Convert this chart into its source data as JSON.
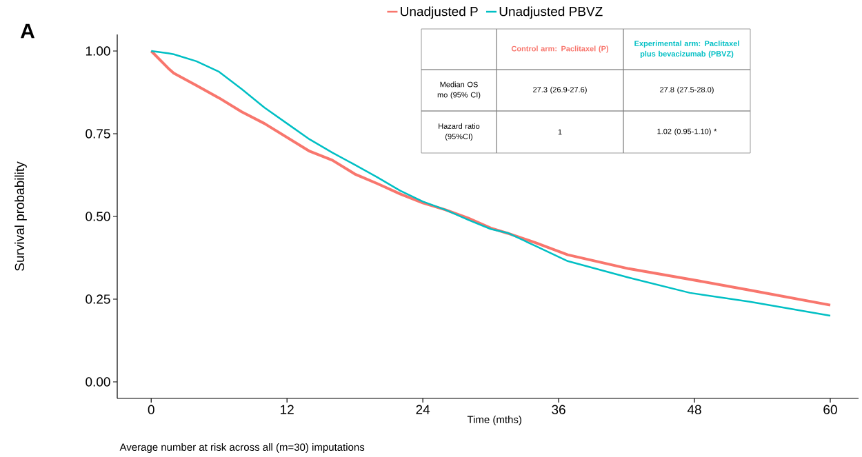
{
  "chart_data": {
    "type": "line",
    "xlabel": "Time (mths)",
    "ylabel": "Survival probability",
    "xlim": [
      -3,
      62.5
    ],
    "ylim": [
      -0.05,
      1.05
    ],
    "xticks": [
      0,
      12,
      24,
      36,
      48,
      60
    ],
    "yticks": [
      {
        "value": 0,
        "label": "0.00"
      },
      {
        "value": 0.25,
        "label": "0.25"
      },
      {
        "value": 0.5,
        "label": "0.50"
      },
      {
        "value": 0.75,
        "label": "0.75"
      },
      {
        "value": 1,
        "label": "1.00"
      }
    ],
    "x": [
      0,
      1.5,
      2,
      4,
      6,
      8,
      10,
      12,
      14,
      16,
      18,
      20,
      22,
      24,
      26,
      28,
      30,
      31.5,
      34,
      36.8,
      42.2,
      47.6,
      52.9,
      60
    ],
    "series": [
      {
        "name": "Unadjusted P",
        "color": "#f8766d",
        "values": [
          1,
          0.948,
          0.933,
          0.896,
          0.858,
          0.816,
          0.781,
          0.739,
          0.697,
          0.67,
          0.628,
          0.599,
          0.568,
          0.541,
          0.52,
          0.495,
          0.465,
          0.449,
          0.42,
          0.384,
          0.342,
          0.31,
          0.277,
          0.232
        ]
      },
      {
        "name": "Unadjusted PBVZ",
        "color": "#00bfc4",
        "values": [
          1,
          0.993,
          0.99,
          0.969,
          0.937,
          0.885,
          0.829,
          0.781,
          0.733,
          0.693,
          0.656,
          0.618,
          0.578,
          0.545,
          0.52,
          0.49,
          0.462,
          0.45,
          0.41,
          0.365,
          0.315,
          0.269,
          0.242,
          0.2
        ]
      }
    ],
    "legend": "top",
    "grid": false,
    "annotations": [
      "A",
      "Control arm: Paclitaxel (P)",
      "Experimental arm: Paclitaxel plus bevacizumab (PBVZ)",
      "Median OS mo (95% CI)",
      "27.3 (26.9-27.6)",
      "27.8 (27.5-28.0)",
      "Hazard ratio (95%CI)",
      "1",
      "1.02 (0.95-1.10) *",
      "Average number at risk across all (m=30) imputations"
    ]
  }
}
